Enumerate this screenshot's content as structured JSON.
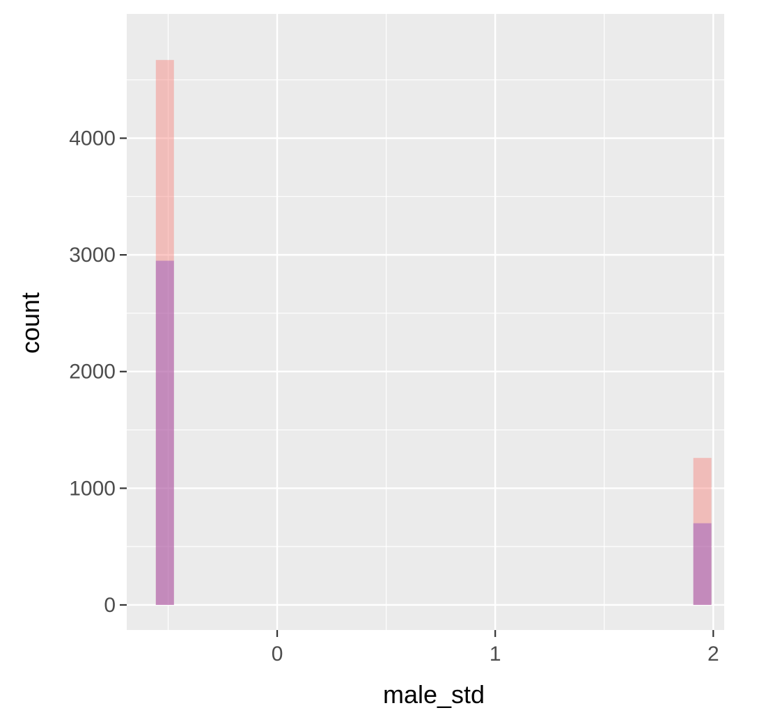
{
  "chart_data": {
    "type": "bar",
    "subtype": "overlaid-histogram",
    "title": "",
    "xlabel": "male_std",
    "ylabel": "count",
    "xlim": [
      -0.69,
      2.05
    ],
    "ylim": [
      -215,
      5065
    ],
    "x_ticks": [
      0,
      1,
      2
    ],
    "x_tick_labels": [
      "0",
      "1",
      "2"
    ],
    "y_ticks": [
      0,
      1000,
      2000,
      3000,
      4000
    ],
    "y_tick_labels": [
      "0",
      "1000",
      "2000",
      "3000",
      "4000"
    ],
    "bin_width": 0.083,
    "grid": true,
    "legend": "none",
    "panel_background": "#ebebeb",
    "grid_color": "#ffffff",
    "series": [
      {
        "color": "#f8766d",
        "opacity": 0.4,
        "bins": [
          {
            "x": -0.515,
            "value": 4670
          },
          {
            "x": 1.95,
            "value": 1260
          }
        ]
      },
      {
        "color": "#7f3fbf",
        "opacity": 0.4,
        "bins": [
          {
            "x": -0.515,
            "value": 2950
          },
          {
            "x": 1.95,
            "value": 700
          }
        ]
      }
    ]
  }
}
